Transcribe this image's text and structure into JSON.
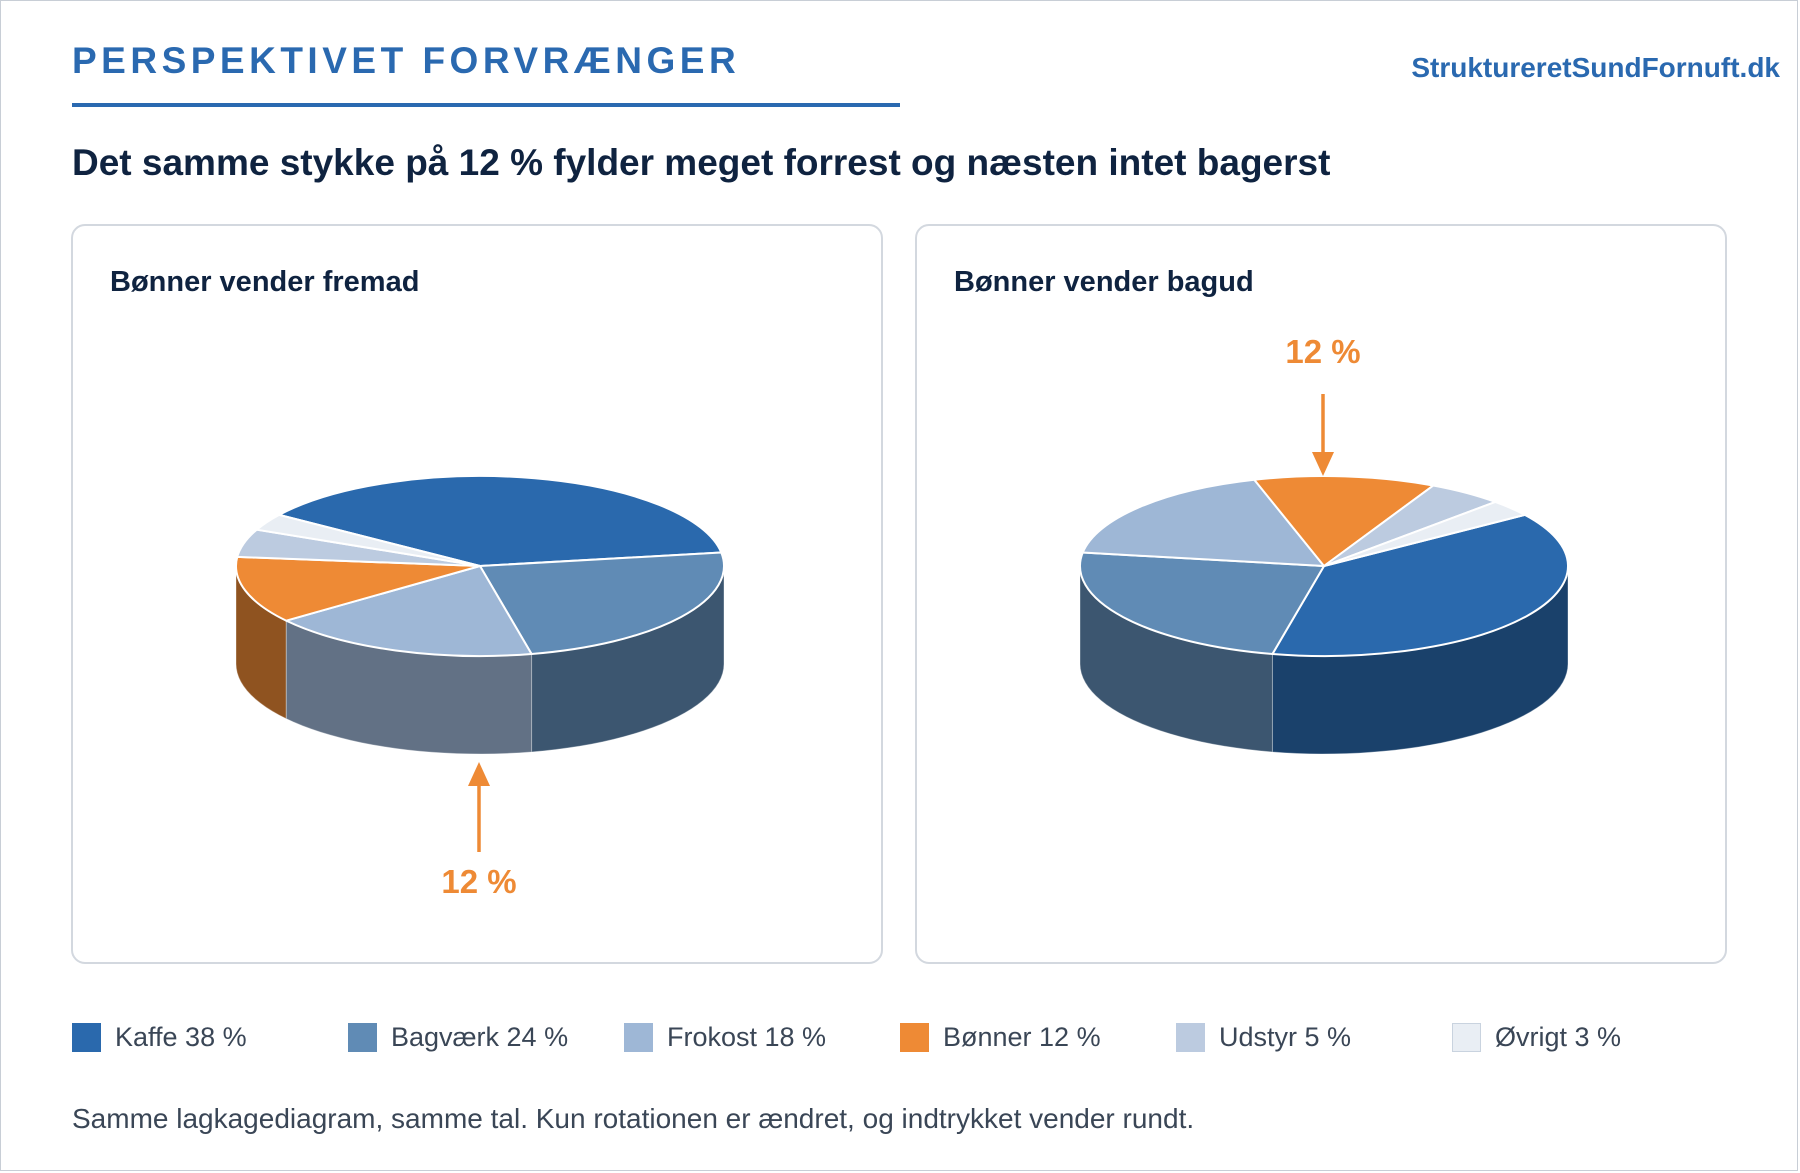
{
  "header": {
    "kicker": "PERSPEKTIVET FORVRÆNGER",
    "brand": "StruktureretSundFornuft.dk",
    "headline": "Det samme stykke på 12 % fylder meget forrest og næsten intet bagerst"
  },
  "colors": {
    "accent": "#2a69b0",
    "highlight": "#ee8a35",
    "ink": "#0f2340"
  },
  "chart_data": [
    {
      "type": "pie",
      "variant": "3d",
      "title": "Bønner vender fremad",
      "highlight_category": "Bønner",
      "highlight_label": "12 %",
      "highlight_position": "front",
      "categories": [
        "Kaffe",
        "Bagværk",
        "Frokost",
        "Bønner",
        "Udstyr",
        "Øvrigt"
      ],
      "values": [
        38,
        24,
        18,
        12,
        5,
        3
      ]
    },
    {
      "type": "pie",
      "variant": "3d",
      "title": "Bønner vender bagud",
      "highlight_category": "Bønner",
      "highlight_label": "12 %",
      "highlight_position": "back",
      "categories": [
        "Kaffe",
        "Bagværk",
        "Frokost",
        "Bønner",
        "Udstyr",
        "Øvrigt"
      ],
      "values": [
        38,
        24,
        18,
        12,
        5,
        3
      ]
    }
  ],
  "legend": [
    {
      "label": "Kaffe 38 %",
      "color": "#2a69ad"
    },
    {
      "label": "Bagværk 24 %",
      "color": "#608bb5"
    },
    {
      "label": "Frokost 18 %",
      "color": "#9eb7d6"
    },
    {
      "label": "Bønner 12 %",
      "color": "#ee8a35"
    },
    {
      "label": "Udstyr 5 %",
      "color": "#bccbe0"
    },
    {
      "label": "Øvrigt 3 %",
      "color": "#e9eef4"
    }
  ],
  "footnote": "Samme lagkagediagram, samme tal. Kun rotationen er ændret, og indtrykket vender rundt."
}
